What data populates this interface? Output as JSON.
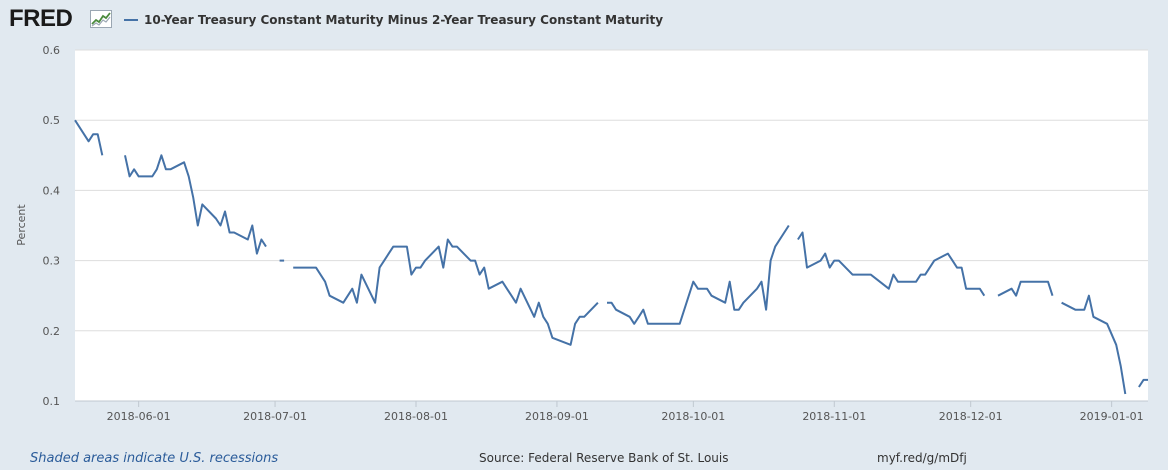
{
  "header": {
    "logo_text": "FRED",
    "legend_label": "10-Year Treasury Constant Maturity Minus 2-Year Treasury Constant Maturity"
  },
  "footer": {
    "recession_note": "Shaded areas indicate U.S. recessions",
    "source": "Source: Federal Reserve Bank of St. Louis",
    "short_url": "myf.red/g/mDfj"
  },
  "colors": {
    "series": "#4572a7",
    "background": "#e1e9f0",
    "plot": "#ffffff",
    "grid": "#dddddd"
  },
  "chart_data": {
    "type": "line",
    "title": "",
    "xlabel": "",
    "ylabel": "Percent",
    "ylim": [
      0.1,
      0.6
    ],
    "xlim": [
      "2018-05-18",
      "2019-01-09"
    ],
    "yticks": [
      "0.1",
      "0.2",
      "0.3",
      "0.4",
      "0.5",
      "0.6"
    ],
    "xticks": [
      "2018-06-01",
      "2018-07-01",
      "2018-08-01",
      "2018-09-01",
      "2018-10-01",
      "2018-11-01",
      "2018-12-01",
      "2019-01-01"
    ],
    "grid": true,
    "legend": "top-left",
    "series": [
      {
        "name": "10-Year Treasury Constant Maturity Minus 2-Year Treasury Constant Maturity",
        "color": "#4572a7",
        "segments": [
          [
            [
              "2018-05-18",
              0.5
            ],
            [
              "2018-05-21",
              0.47
            ],
            [
              "2018-05-22",
              0.48
            ],
            [
              "2018-05-23",
              0.48
            ],
            [
              "2018-05-24",
              0.45
            ]
          ],
          [
            [
              "2018-05-29",
              0.45
            ],
            [
              "2018-05-30",
              0.42
            ],
            [
              "2018-05-31",
              0.43
            ],
            [
              "2018-06-01",
              0.42
            ],
            [
              "2018-06-04",
              0.42
            ],
            [
              "2018-06-05",
              0.43
            ],
            [
              "2018-06-06",
              0.45
            ],
            [
              "2018-06-07",
              0.43
            ],
            [
              "2018-06-08",
              0.43
            ],
            [
              "2018-06-11",
              0.44
            ],
            [
              "2018-06-12",
              0.42
            ],
            [
              "2018-06-13",
              0.39
            ],
            [
              "2018-06-14",
              0.35
            ],
            [
              "2018-06-15",
              0.38
            ],
            [
              "2018-06-18",
              0.36
            ],
            [
              "2018-06-19",
              0.35
            ],
            [
              "2018-06-20",
              0.37
            ],
            [
              "2018-06-21",
              0.34
            ],
            [
              "2018-06-22",
              0.34
            ],
            [
              "2018-06-25",
              0.33
            ],
            [
              "2018-06-26",
              0.35
            ],
            [
              "2018-06-27",
              0.31
            ],
            [
              "2018-06-28",
              0.33
            ],
            [
              "2018-06-29",
              0.32
            ]
          ],
          [
            [
              "2018-07-02",
              0.3
            ],
            [
              "2018-07-03",
              0.3
            ]
          ],
          [
            [
              "2018-07-05",
              0.29
            ],
            [
              "2018-07-06",
              0.29
            ],
            [
              "2018-07-09",
              0.29
            ],
            [
              "2018-07-10",
              0.29
            ],
            [
              "2018-07-11",
              0.28
            ],
            [
              "2018-07-12",
              0.27
            ],
            [
              "2018-07-13",
              0.25
            ],
            [
              "2018-07-16",
              0.24
            ],
            [
              "2018-07-17",
              0.25
            ],
            [
              "2018-07-18",
              0.26
            ],
            [
              "2018-07-19",
              0.24
            ],
            [
              "2018-07-20",
              0.28
            ],
            [
              "2018-07-23",
              0.24
            ],
            [
              "2018-07-24",
              0.29
            ],
            [
              "2018-07-25",
              0.3
            ],
            [
              "2018-07-26",
              0.31
            ],
            [
              "2018-07-27",
              0.32
            ],
            [
              "2018-07-30",
              0.32
            ],
            [
              "2018-07-31",
              0.28
            ],
            [
              "2018-08-01",
              0.29
            ],
            [
              "2018-08-02",
              0.29
            ],
            [
              "2018-08-03",
              0.3
            ],
            [
              "2018-08-06",
              0.32
            ],
            [
              "2018-08-07",
              0.29
            ],
            [
              "2018-08-08",
              0.33
            ],
            [
              "2018-08-09",
              0.32
            ],
            [
              "2018-08-10",
              0.32
            ],
            [
              "2018-08-13",
              0.3
            ],
            [
              "2018-08-14",
              0.3
            ],
            [
              "2018-08-15",
              0.28
            ],
            [
              "2018-08-16",
              0.29
            ],
            [
              "2018-08-17",
              0.26
            ],
            [
              "2018-08-20",
              0.27
            ],
            [
              "2018-08-21",
              0.26
            ],
            [
              "2018-08-22",
              0.25
            ],
            [
              "2018-08-23",
              0.24
            ],
            [
              "2018-08-24",
              0.26
            ],
            [
              "2018-08-27",
              0.22
            ],
            [
              "2018-08-28",
              0.24
            ],
            [
              "2018-08-29",
              0.22
            ],
            [
              "2018-08-30",
              0.21
            ],
            [
              "2018-08-31",
              0.19
            ],
            [
              "2018-09-04",
              0.18
            ],
            [
              "2018-09-05",
              0.21
            ],
            [
              "2018-09-06",
              0.22
            ],
            [
              "2018-09-07",
              0.22
            ],
            [
              "2018-09-10",
              0.24
            ]
          ],
          [
            [
              "2018-09-12",
              0.24
            ],
            [
              "2018-09-13",
              0.24
            ],
            [
              "2018-09-14",
              0.23
            ],
            [
              "2018-09-17",
              0.22
            ],
            [
              "2018-09-18",
              0.21
            ],
            [
              "2018-09-19",
              0.22
            ],
            [
              "2018-09-20",
              0.23
            ],
            [
              "2018-09-21",
              0.21
            ],
            [
              "2018-09-24",
              0.21
            ],
            [
              "2018-09-25",
              0.21
            ],
            [
              "2018-09-26",
              0.21
            ],
            [
              "2018-09-27",
              0.21
            ],
            [
              "2018-09-28",
              0.21
            ],
            [
              "2018-10-01",
              0.27
            ],
            [
              "2018-10-02",
              0.26
            ],
            [
              "2018-10-03",
              0.26
            ],
            [
              "2018-10-04",
              0.26
            ],
            [
              "2018-10-05",
              0.25
            ],
            [
              "2018-10-08",
              0.24
            ],
            [
              "2018-10-09",
              0.27
            ],
            [
              "2018-10-10",
              0.23
            ],
            [
              "2018-10-11",
              0.23
            ],
            [
              "2018-10-12",
              0.24
            ],
            [
              "2018-10-15",
              0.26
            ],
            [
              "2018-10-16",
              0.27
            ],
            [
              "2018-10-17",
              0.23
            ],
            [
              "2018-10-18",
              0.3
            ],
            [
              "2018-10-19",
              0.32
            ],
            [
              "2018-10-22",
              0.35
            ]
          ],
          [
            [
              "2018-10-24",
              0.33
            ],
            [
              "2018-10-25",
              0.34
            ],
            [
              "2018-10-26",
              0.29
            ],
            [
              "2018-10-29",
              0.3
            ],
            [
              "2018-10-30",
              0.31
            ],
            [
              "2018-10-31",
              0.29
            ],
            [
              "2018-11-01",
              0.3
            ],
            [
              "2018-11-02",
              0.3
            ],
            [
              "2018-11-05",
              0.28
            ],
            [
              "2018-11-06",
              0.28
            ],
            [
              "2018-11-07",
              0.28
            ],
            [
              "2018-11-08",
              0.28
            ],
            [
              "2018-11-09",
              0.28
            ],
            [
              "2018-11-13",
              0.26
            ],
            [
              "2018-11-14",
              0.28
            ],
            [
              "2018-11-15",
              0.27
            ],
            [
              "2018-11-16",
              0.27
            ],
            [
              "2018-11-19",
              0.27
            ],
            [
              "2018-11-20",
              0.28
            ],
            [
              "2018-11-21",
              0.28
            ],
            [
              "2018-11-23",
              0.3
            ],
            [
              "2018-11-26",
              0.31
            ],
            [
              "2018-11-27",
              0.3
            ],
            [
              "2018-11-28",
              0.29
            ],
            [
              "2018-11-29",
              0.29
            ],
            [
              "2018-11-30",
              0.26
            ],
            [
              "2018-12-03",
              0.26
            ],
            [
              "2018-12-04",
              0.25
            ]
          ],
          [
            [
              "2018-12-07",
              0.25
            ],
            [
              "2018-12-10",
              0.26
            ],
            [
              "2018-12-11",
              0.25
            ],
            [
              "2018-12-12",
              0.27
            ],
            [
              "2018-12-13",
              0.27
            ],
            [
              "2018-12-14",
              0.27
            ],
            [
              "2018-12-17",
              0.27
            ],
            [
              "2018-12-18",
              0.27
            ],
            [
              "2018-12-19",
              0.25
            ]
          ],
          [
            [
              "2018-12-21",
              0.24
            ],
            [
              "2018-12-24",
              0.23
            ],
            [
              "2018-12-26",
              0.23
            ],
            [
              "2018-12-27",
              0.25
            ],
            [
              "2018-12-28",
              0.22
            ],
            [
              "2018-12-31",
              0.21
            ],
            [
              "2019-01-02",
              0.18
            ],
            [
              "2019-01-03",
              0.15
            ],
            [
              "2019-01-04",
              0.11
            ]
          ],
          [
            [
              "2019-01-07",
              0.12
            ],
            [
              "2019-01-08",
              0.13
            ],
            [
              "2019-01-09",
              0.13
            ]
          ]
        ]
      }
    ]
  }
}
